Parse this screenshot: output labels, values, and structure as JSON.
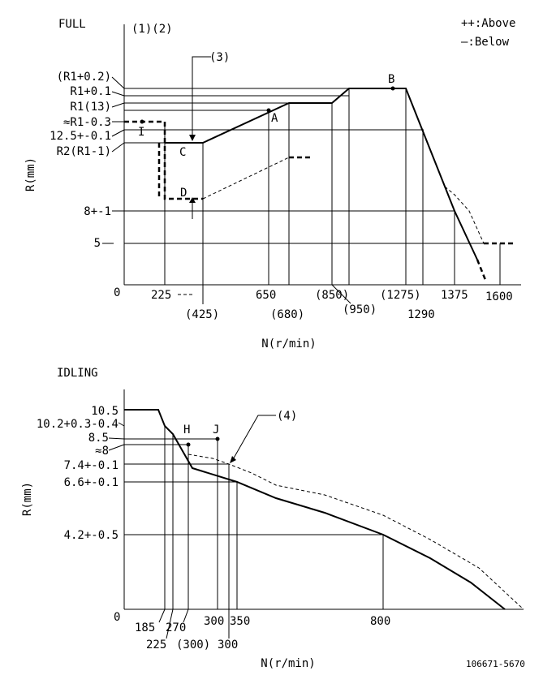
{
  "full": {
    "title": "FULL",
    "notes": "(1)(2)",
    "legend_above": "++:Above",
    "legend_below": "—:Below",
    "ref3": "(3)",
    "ylabel": "R(mm)",
    "xlabel": "N(r/min)",
    "origin": "0",
    "y_labels": [
      "(R1+0.2)",
      "R1+0.1",
      "R1(13)",
      "≈R1-0.3",
      "12.5+-0.1",
      "R2(R1-1)",
      "8+-1",
      "5"
    ],
    "x_labels": [
      "225",
      "(425)",
      "650",
      "(680)",
      "(850)",
      "(950)",
      "(1275)",
      "1290",
      "1375",
      "1600"
    ],
    "points": [
      "A",
      "B",
      "C",
      "D",
      "I"
    ]
  },
  "idling": {
    "title": "IDLING",
    "ref4": "(4)",
    "ylabel": "R(mm)",
    "xlabel": "N(r/min)",
    "origin": "0",
    "y_labels": [
      "10.5",
      "10.2+0.3-0.4",
      "8.5",
      "≈8",
      "7.4+-0.1",
      "6.6+-0.1",
      "4.2+-0.5"
    ],
    "x_labels": [
      "185",
      "225",
      "270",
      "(300)",
      "300",
      "350",
      "300",
      "800"
    ],
    "points": [
      "H",
      "J"
    ]
  },
  "doc_id": "106671-5670"
}
